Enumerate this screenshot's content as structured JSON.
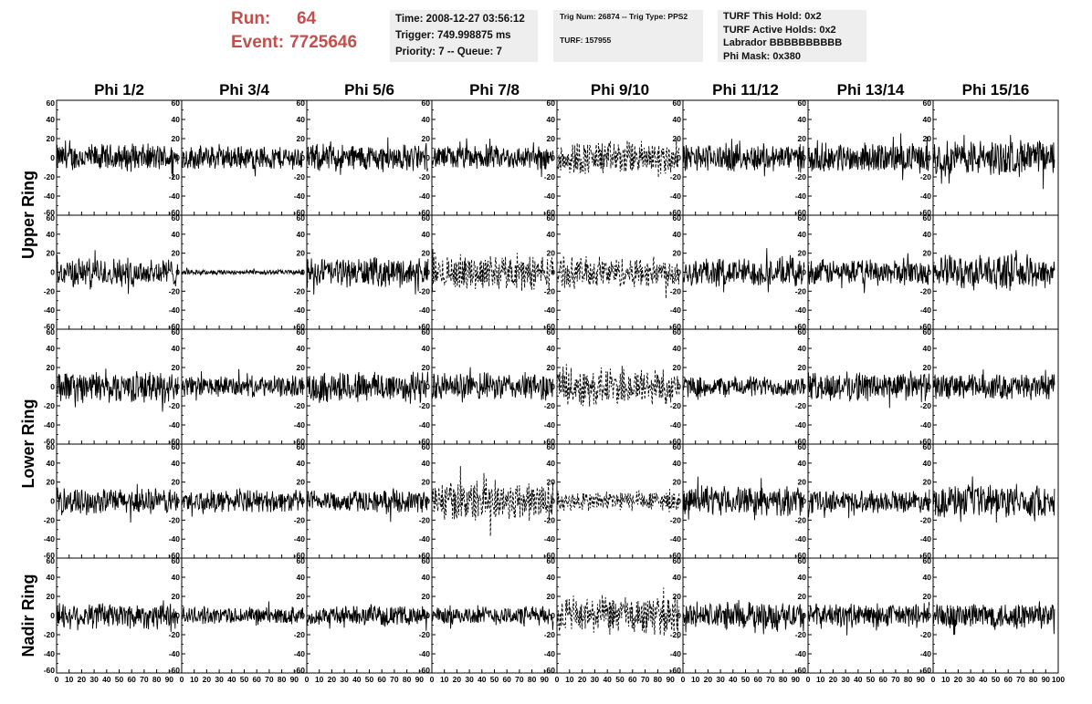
{
  "run_box": {
    "run_label": "Run:",
    "run_value": "64",
    "event_label": "Event:",
    "event_value": "7725646"
  },
  "info_time": {
    "time": "Time: 2008-12-27 03:56:12",
    "trigger": "Trigger: 749.998875 ms",
    "priority": "Priority: 7 -- Queue: 7"
  },
  "info_trig": {
    "trig": "Trig Num: 26874 -- Trig Type: PPS2",
    "turf": "TURF: 157955"
  },
  "info_turf": {
    "hold": "TURF This Hold: 0x2",
    "active": "TURF Active Holds: 0x2",
    "labrador": "Labrador BBBBBBBBBB",
    "mask": "Phi Mask: 0x380"
  },
  "colors": {
    "trace": "#000000",
    "run_text": "#c0504d",
    "info_bg": "#eeeeee"
  },
  "chart_data": {
    "type": "line",
    "columns": [
      "Phi 1/2",
      "Phi 3/4",
      "Phi 5/6",
      "Phi 7/8",
      "Phi 9/10",
      "Phi 11/12",
      "Phi 13/14",
      "Phi 15/16"
    ],
    "ring_labels": [
      {
        "label": "Upper Ring",
        "rows": [
          0,
          1
        ]
      },
      {
        "label": "Lower Ring",
        "rows": [
          2,
          3
        ]
      },
      {
        "label": "Nadir Ring",
        "rows": [
          4
        ]
      }
    ],
    "rows": 5,
    "xlim": [
      0,
      100
    ],
    "ylim": [
      -60,
      60
    ],
    "x_ticks": [
      0,
      10,
      20,
      30,
      40,
      50,
      60,
      70,
      80,
      90,
      100
    ],
    "x_tick_labels": [
      "0",
      "10",
      "20",
      "30",
      "40",
      "50",
      "60",
      "70",
      "80",
      "90",
      "100"
    ],
    "y_ticks": [
      60,
      40,
      20,
      0,
      -20,
      -40,
      -60
    ],
    "y_tick_labels": [
      "60",
      "40",
      "20",
      "0",
      "-20",
      "-40",
      "-60"
    ],
    "samples_per_trace": 260,
    "trace_x_extent": [
      0,
      97
    ],
    "amplitudes": [
      [
        16,
        14,
        16,
        14,
        20,
        16,
        17,
        21
      ],
      [
        17,
        3,
        17,
        20,
        18,
        17,
        15,
        20
      ],
      [
        18,
        12,
        19,
        16,
        22,
        12,
        17,
        15
      ],
      [
        15,
        13,
        13,
        24,
        12,
        17,
        13,
        19
      ],
      [
        16,
        10,
        11,
        11,
        22,
        16,
        14,
        16
      ]
    ],
    "dashed_panels": [
      [
        0,
        4
      ],
      [
        1,
        3
      ],
      [
        1,
        4
      ],
      [
        2,
        4
      ],
      [
        3,
        3
      ],
      [
        3,
        4
      ],
      [
        4,
        4
      ]
    ]
  }
}
